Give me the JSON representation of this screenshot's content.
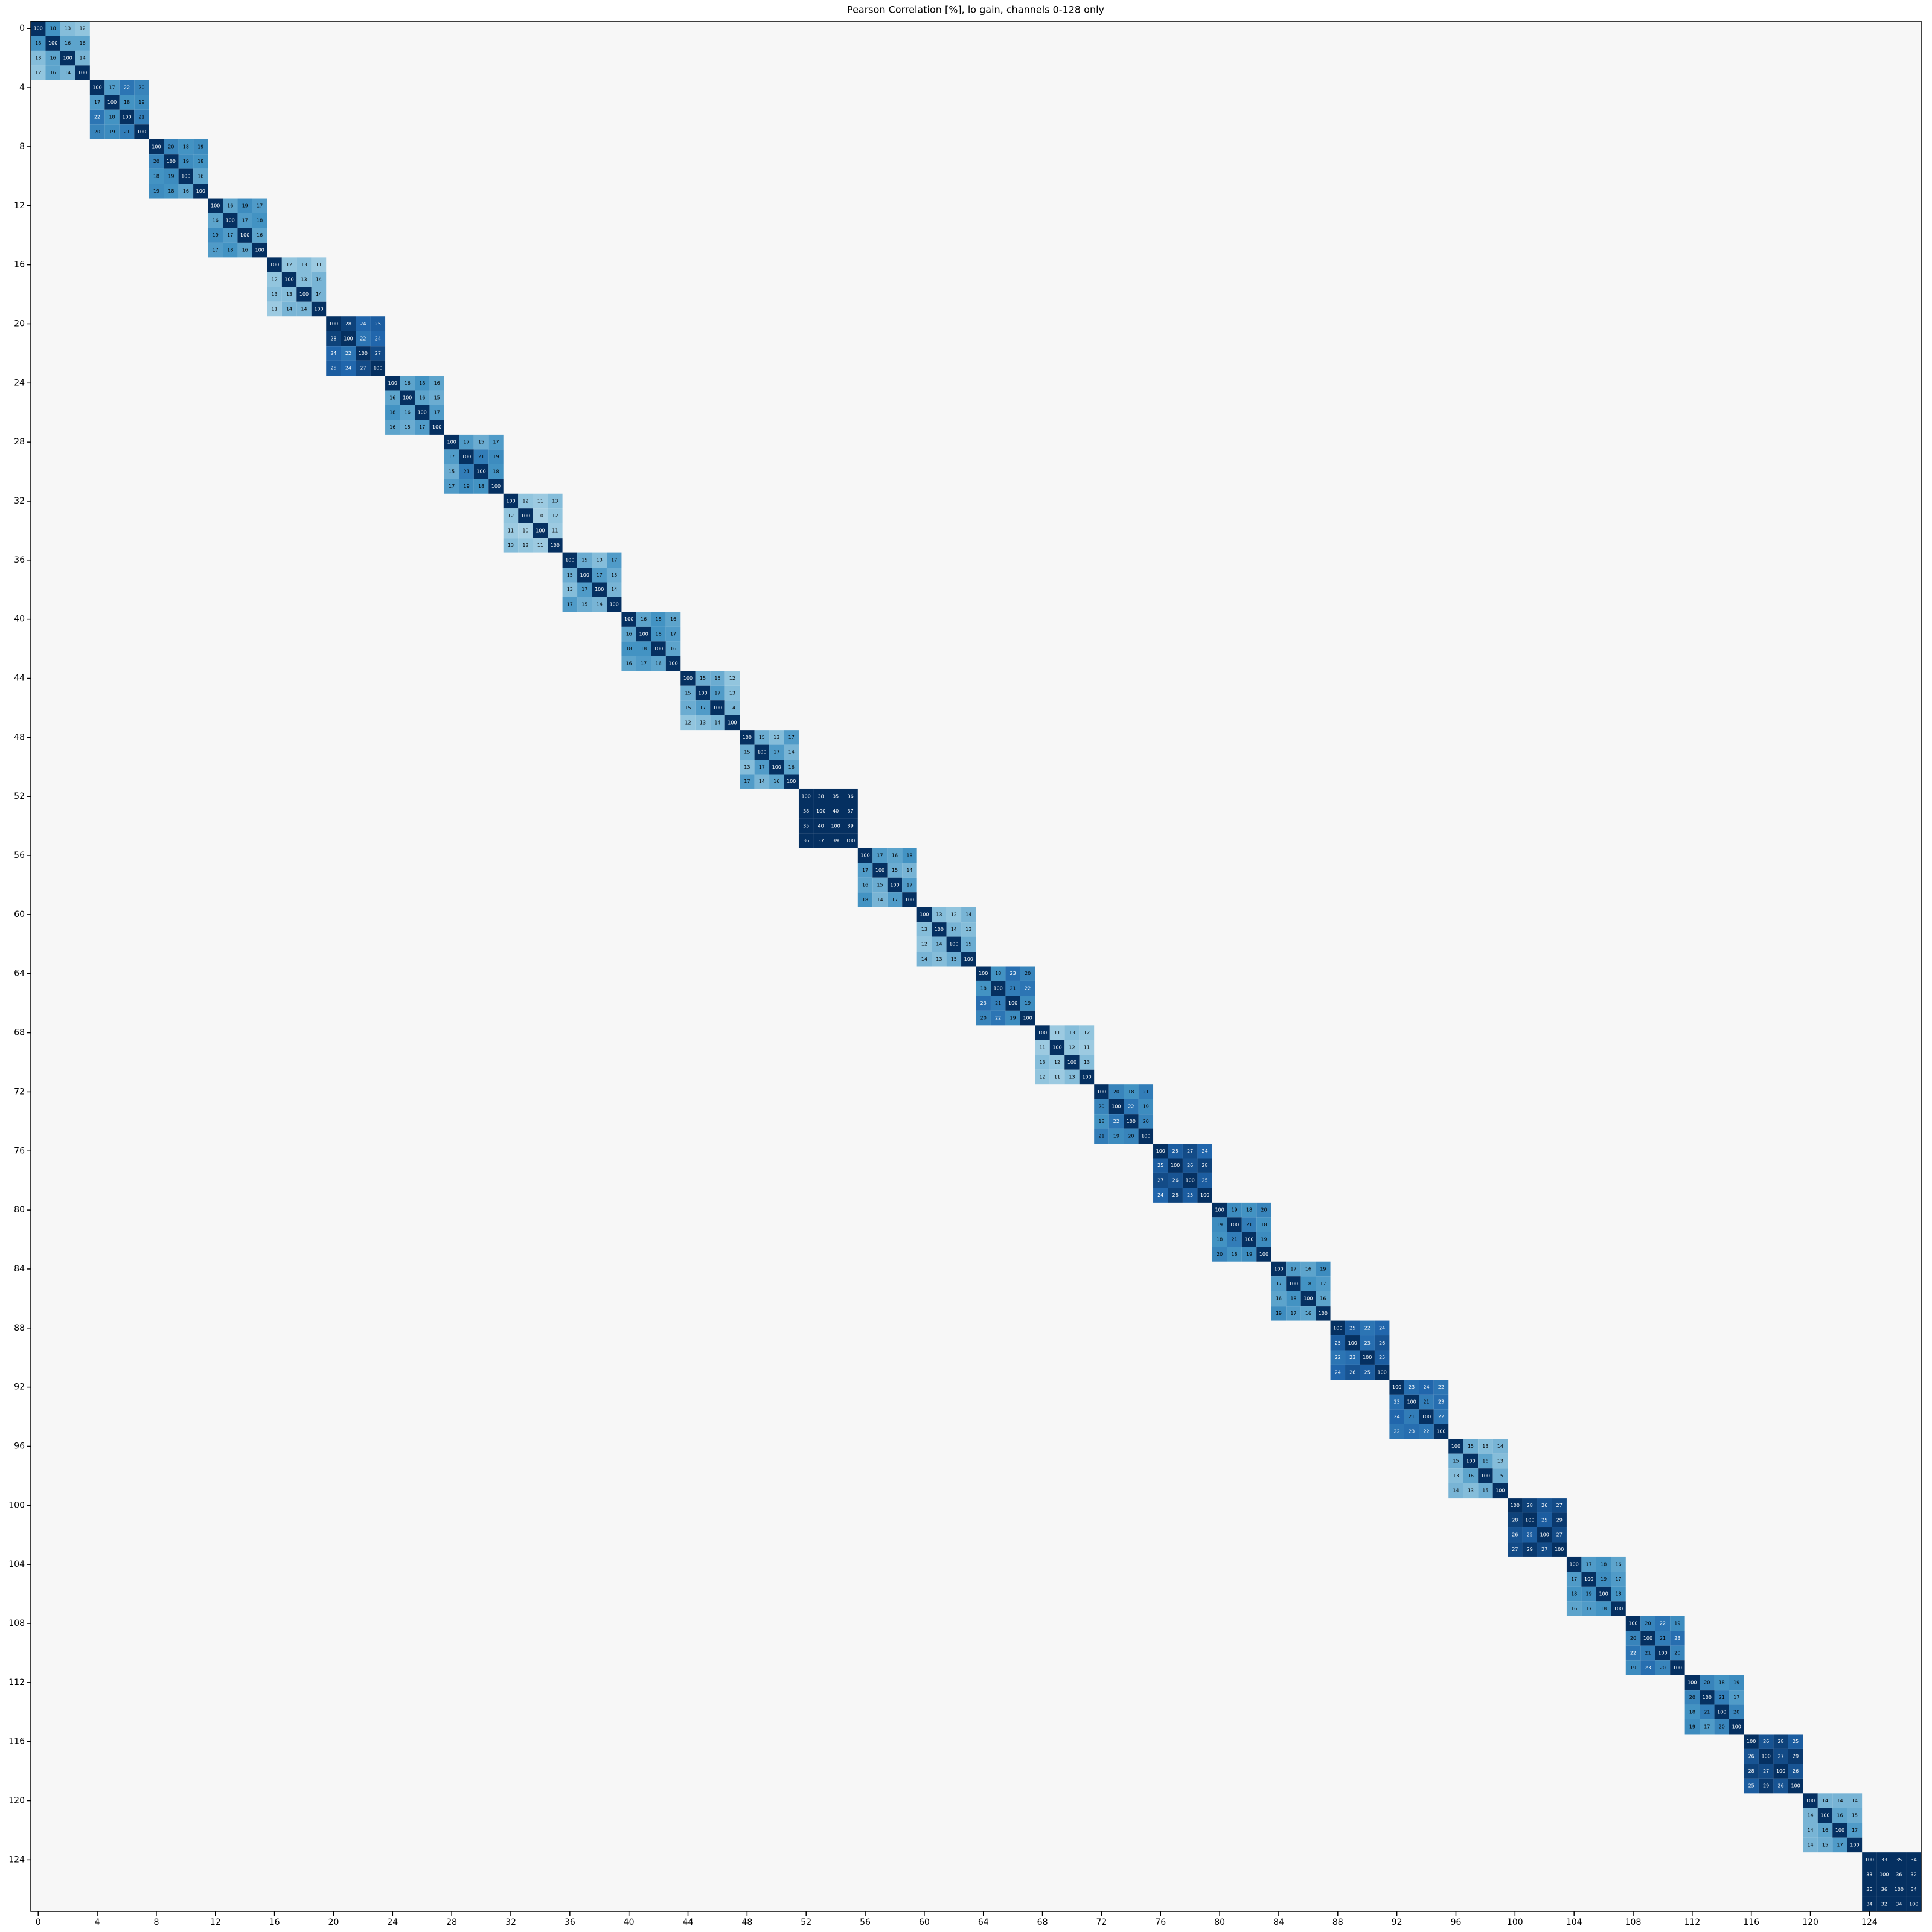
{
  "chart_data": {
    "type": "heatmap",
    "title": "Pearson Correlation [%], lo gain, channels 0-128 only",
    "size": 128,
    "colormap": [
      "#67001f",
      "#b2182b",
      "#d6604d",
      "#f4a582",
      "#fddbc7",
      "#f7f7f7",
      "#d1e5f0",
      "#92c5de",
      "#4393c3",
      "#2166ac",
      "#053061"
    ],
    "clim": [
      -30,
      30
    ],
    "xticks": [
      0,
      4,
      8,
      12,
      16,
      20,
      24,
      28,
      32,
      36,
      40,
      44,
      48,
      52,
      56,
      60,
      64,
      68,
      72,
      76,
      80,
      84,
      88,
      92,
      96,
      100,
      104,
      108,
      112,
      116,
      120,
      124
    ],
    "yticks": [
      0,
      4,
      8,
      12,
      16,
      20,
      24,
      28,
      32,
      36,
      40,
      44,
      48,
      52,
      56,
      60,
      64,
      68,
      72,
      76,
      80,
      84,
      88,
      92,
      96,
      100,
      104,
      108,
      112,
      116,
      120,
      124
    ],
    "diagonal_blocks": [
      [
        [
          100,
          18,
          13,
          12
        ],
        [
          18,
          100,
          16,
          16
        ],
        [
          13,
          16,
          100,
          14
        ],
        [
          12,
          16,
          14,
          100
        ]
      ],
      [
        [
          100,
          17,
          22,
          20
        ],
        [
          17,
          100,
          18,
          19
        ],
        [
          22,
          18,
          100,
          21
        ],
        [
          20,
          19,
          21,
          100
        ]
      ],
      [
        [
          100,
          20,
          18,
          19
        ],
        [
          20,
          100,
          19,
          18
        ],
        [
          18,
          19,
          100,
          16
        ],
        [
          19,
          18,
          16,
          100
        ]
      ],
      [
        [
          100,
          16,
          19,
          17
        ],
        [
          16,
          100,
          17,
          18
        ],
        [
          19,
          17,
          100,
          16
        ],
        [
          17,
          18,
          16,
          100
        ]
      ],
      [
        [
          100,
          12,
          13,
          11
        ],
        [
          12,
          100,
          13,
          14
        ],
        [
          13,
          13,
          100,
          14
        ],
        [
          11,
          14,
          14,
          100
        ]
      ],
      [
        [
          100,
          28,
          24,
          25
        ],
        [
          28,
          100,
          22,
          24
        ],
        [
          24,
          22,
          100,
          27
        ],
        [
          25,
          24,
          27,
          100
        ]
      ],
      [
        [
          100,
          16,
          18,
          16
        ],
        [
          16,
          100,
          16,
          15
        ],
        [
          18,
          16,
          100,
          17
        ],
        [
          16,
          15,
          17,
          100
        ]
      ],
      [
        [
          100,
          17,
          15,
          17
        ],
        [
          17,
          100,
          21,
          19
        ],
        [
          15,
          21,
          100,
          18
        ],
        [
          17,
          19,
          18,
          100
        ]
      ],
      [
        [
          100,
          12,
          11,
          13
        ],
        [
          12,
          100,
          10,
          12
        ],
        [
          11,
          10,
          100,
          11
        ],
        [
          13,
          12,
          11,
          100
        ]
      ],
      [
        [
          100,
          15,
          13,
          17
        ],
        [
          15,
          100,
          17,
          15
        ],
        [
          13,
          17,
          100,
          14
        ],
        [
          17,
          15,
          14,
          100
        ]
      ],
      [
        [
          100,
          16,
          18,
          16
        ],
        [
          16,
          100,
          18,
          17
        ],
        [
          18,
          18,
          100,
          16
        ],
        [
          16,
          17,
          16,
          100
        ]
      ],
      [
        [
          100,
          15,
          15,
          12
        ],
        [
          15,
          100,
          17,
          13
        ],
        [
          15,
          17,
          100,
          14
        ],
        [
          12,
          13,
          14,
          100
        ]
      ],
      [
        [
          100,
          15,
          13,
          17
        ],
        [
          15,
          100,
          17,
          14
        ],
        [
          13,
          17,
          100,
          16
        ],
        [
          17,
          14,
          16,
          100
        ]
      ],
      [
        [
          100,
          38,
          35,
          36
        ],
        [
          38,
          100,
          40,
          37
        ],
        [
          35,
          40,
          100,
          39
        ],
        [
          36,
          37,
          39,
          100
        ]
      ],
      [
        [
          100,
          17,
          16,
          18
        ],
        [
          17,
          100,
          15,
          14
        ],
        [
          16,
          15,
          100,
          17
        ],
        [
          18,
          14,
          17,
          100
        ]
      ],
      [
        [
          100,
          13,
          12,
          14
        ],
        [
          13,
          100,
          14,
          13
        ],
        [
          12,
          14,
          100,
          15
        ],
        [
          14,
          13,
          15,
          100
        ]
      ],
      [
        [
          100,
          18,
          23,
          20
        ],
        [
          18,
          100,
          21,
          22
        ],
        [
          23,
          21,
          100,
          19
        ],
        [
          20,
          22,
          19,
          100
        ]
      ],
      [
        [
          100,
          11,
          13,
          12
        ],
        [
          11,
          100,
          12,
          11
        ],
        [
          13,
          12,
          100,
          13
        ],
        [
          12,
          11,
          13,
          100
        ]
      ],
      [
        [
          100,
          20,
          18,
          21
        ],
        [
          20,
          100,
          22,
          19
        ],
        [
          18,
          22,
          100,
          20
        ],
        [
          21,
          19,
          20,
          100
        ]
      ],
      [
        [
          100,
          25,
          27,
          24
        ],
        [
          25,
          100,
          26,
          28
        ],
        [
          27,
          26,
          100,
          25
        ],
        [
          24,
          28,
          25,
          100
        ]
      ],
      [
        [
          100,
          19,
          18,
          20
        ],
        [
          19,
          100,
          21,
          18
        ],
        [
          18,
          21,
          100,
          19
        ],
        [
          20,
          18,
          19,
          100
        ]
      ],
      [
        [
          100,
          17,
          16,
          19
        ],
        [
          17,
          100,
          18,
          17
        ],
        [
          16,
          18,
          100,
          16
        ],
        [
          19,
          17,
          16,
          100
        ]
      ],
      [
        [
          100,
          25,
          22,
          24
        ],
        [
          25,
          100,
          23,
          26
        ],
        [
          22,
          23,
          100,
          25
        ],
        [
          24,
          26,
          25,
          100
        ]
      ],
      [
        [
          100,
          23,
          24,
          22
        ],
        [
          23,
          100,
          21,
          23
        ],
        [
          24,
          21,
          100,
          22
        ],
        [
          22,
          23,
          22,
          100
        ]
      ],
      [
        [
          100,
          15,
          13,
          14
        ],
        [
          15,
          100,
          16,
          13
        ],
        [
          13,
          16,
          100,
          15
        ],
        [
          14,
          13,
          15,
          100
        ]
      ],
      [
        [
          100,
          28,
          26,
          27
        ],
        [
          28,
          100,
          25,
          29
        ],
        [
          26,
          25,
          100,
          27
        ],
        [
          27,
          29,
          27,
          100
        ]
      ],
      [
        [
          100,
          17,
          18,
          16
        ],
        [
          17,
          100,
          19,
          17
        ],
        [
          18,
          19,
          100,
          18
        ],
        [
          16,
          17,
          18,
          100
        ]
      ],
      [
        [
          100,
          20,
          22,
          19
        ],
        [
          20,
          100,
          21,
          23
        ],
        [
          22,
          21,
          100,
          20
        ],
        [
          19,
          23,
          20,
          100
        ]
      ],
      [
        [
          100,
          20,
          18,
          19
        ],
        [
          20,
          100,
          21,
          17
        ],
        [
          18,
          21,
          100,
          20
        ],
        [
          19,
          17,
          20,
          100
        ]
      ],
      [
        [
          100,
          26,
          28,
          25
        ],
        [
          26,
          100,
          27,
          29
        ],
        [
          28,
          27,
          100,
          26
        ],
        [
          25,
          29,
          26,
          100
        ]
      ],
      [
        [
          100,
          14,
          14,
          14
        ],
        [
          14,
          100,
          16,
          15
        ],
        [
          14,
          16,
          100,
          17
        ],
        [
          14,
          15,
          17,
          100
        ]
      ],
      [
        [
          100,
          33,
          35,
          34
        ],
        [
          33,
          100,
          36,
          32
        ],
        [
          35,
          36,
          100,
          34
        ],
        [
          34,
          32,
          34,
          100
        ]
      ]
    ]
  }
}
